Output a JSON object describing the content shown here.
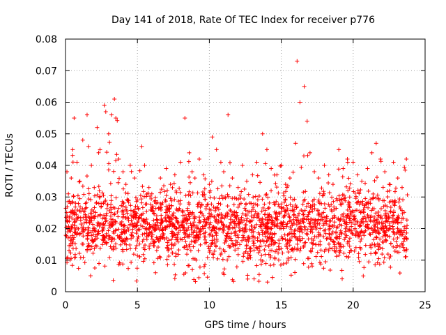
{
  "chart_data": {
    "type": "scatter",
    "title": "Day 141 of 2018, Rate Of TEC Index for receiver p776",
    "xlabel": "GPS time / hours",
    "ylabel": "ROTI / TECUs",
    "xlim": [
      0,
      25
    ],
    "ylim": [
      0,
      0.08
    ],
    "x_ticks": [
      0,
      5,
      10,
      15,
      20,
      25
    ],
    "x_tick_labels": [
      "0",
      "5",
      "10",
      "15",
      "20",
      "25"
    ],
    "y_ticks": [
      0,
      0.01,
      0.02,
      0.03,
      0.04,
      0.05,
      0.06,
      0.07,
      0.08
    ],
    "y_tick_labels": [
      "0",
      "0.01",
      "0.02",
      "0.03",
      "0.04",
      "0.05",
      "0.06",
      "0.07",
      "0.08"
    ],
    "grid": true,
    "marker": "+",
    "marker_color": "#ff0000",
    "series": [
      {
        "name": "ROTI",
        "x": [
          0.1,
          0.2,
          0.4,
          0.5,
          0.6,
          0.8,
          1.0,
          1.2,
          1.5,
          1.6,
          1.8,
          2.0,
          2.2,
          2.4,
          2.7,
          2.8,
          3.0,
          3.2,
          3.4,
          3.5,
          3.7,
          4.0,
          4.2,
          4.5,
          4.8,
          5.0,
          5.3,
          5.5,
          5.8,
          6.0,
          6.3,
          6.6,
          7.0,
          7.3,
          7.6,
          8.0,
          8.3,
          8.6,
          8.8,
          9.0,
          9.3,
          9.6,
          10.0,
          10.2,
          10.5,
          10.8,
          11.0,
          11.3,
          11.6,
          12.0,
          12.3,
          12.6,
          13.0,
          13.3,
          13.7,
          14.0,
          14.3,
          14.7,
          15.0,
          15.3,
          15.6,
          16.0,
          16.1,
          16.3,
          16.6,
          16.8,
          17.0,
          17.3,
          17.6,
          18.0,
          18.3,
          18.6,
          19.0,
          19.3,
          19.6,
          20.0,
          20.3,
          20.6,
          21.0,
          21.3,
          21.6,
          21.9,
          22.2,
          22.5,
          22.8,
          23.1,
          23.4,
          23.7
        ],
        "y": [
          0.038,
          0.031,
          0.036,
          0.045,
          0.055,
          0.041,
          0.035,
          0.048,
          0.056,
          0.046,
          0.04,
          0.033,
          0.052,
          0.045,
          0.059,
          0.057,
          0.05,
          0.056,
          0.061,
          0.055,
          0.042,
          0.038,
          0.034,
          0.04,
          0.036,
          0.029,
          0.046,
          0.04,
          0.033,
          0.031,
          0.028,
          0.036,
          0.039,
          0.034,
          0.037,
          0.041,
          0.055,
          0.044,
          0.038,
          0.036,
          0.042,
          0.037,
          0.034,
          0.049,
          0.045,
          0.041,
          0.038,
          0.056,
          0.036,
          0.033,
          0.04,
          0.035,
          0.037,
          0.041,
          0.05,
          0.045,
          0.039,
          0.037,
          0.04,
          0.034,
          0.036,
          0.047,
          0.073,
          0.06,
          0.065,
          0.054,
          0.044,
          0.038,
          0.036,
          0.04,
          0.037,
          0.034,
          0.045,
          0.039,
          0.042,
          0.041,
          0.037,
          0.035,
          0.039,
          0.044,
          0.047,
          0.042,
          0.038,
          0.034,
          0.041,
          0.036,
          0.033,
          0.042
        ]
      }
    ]
  }
}
